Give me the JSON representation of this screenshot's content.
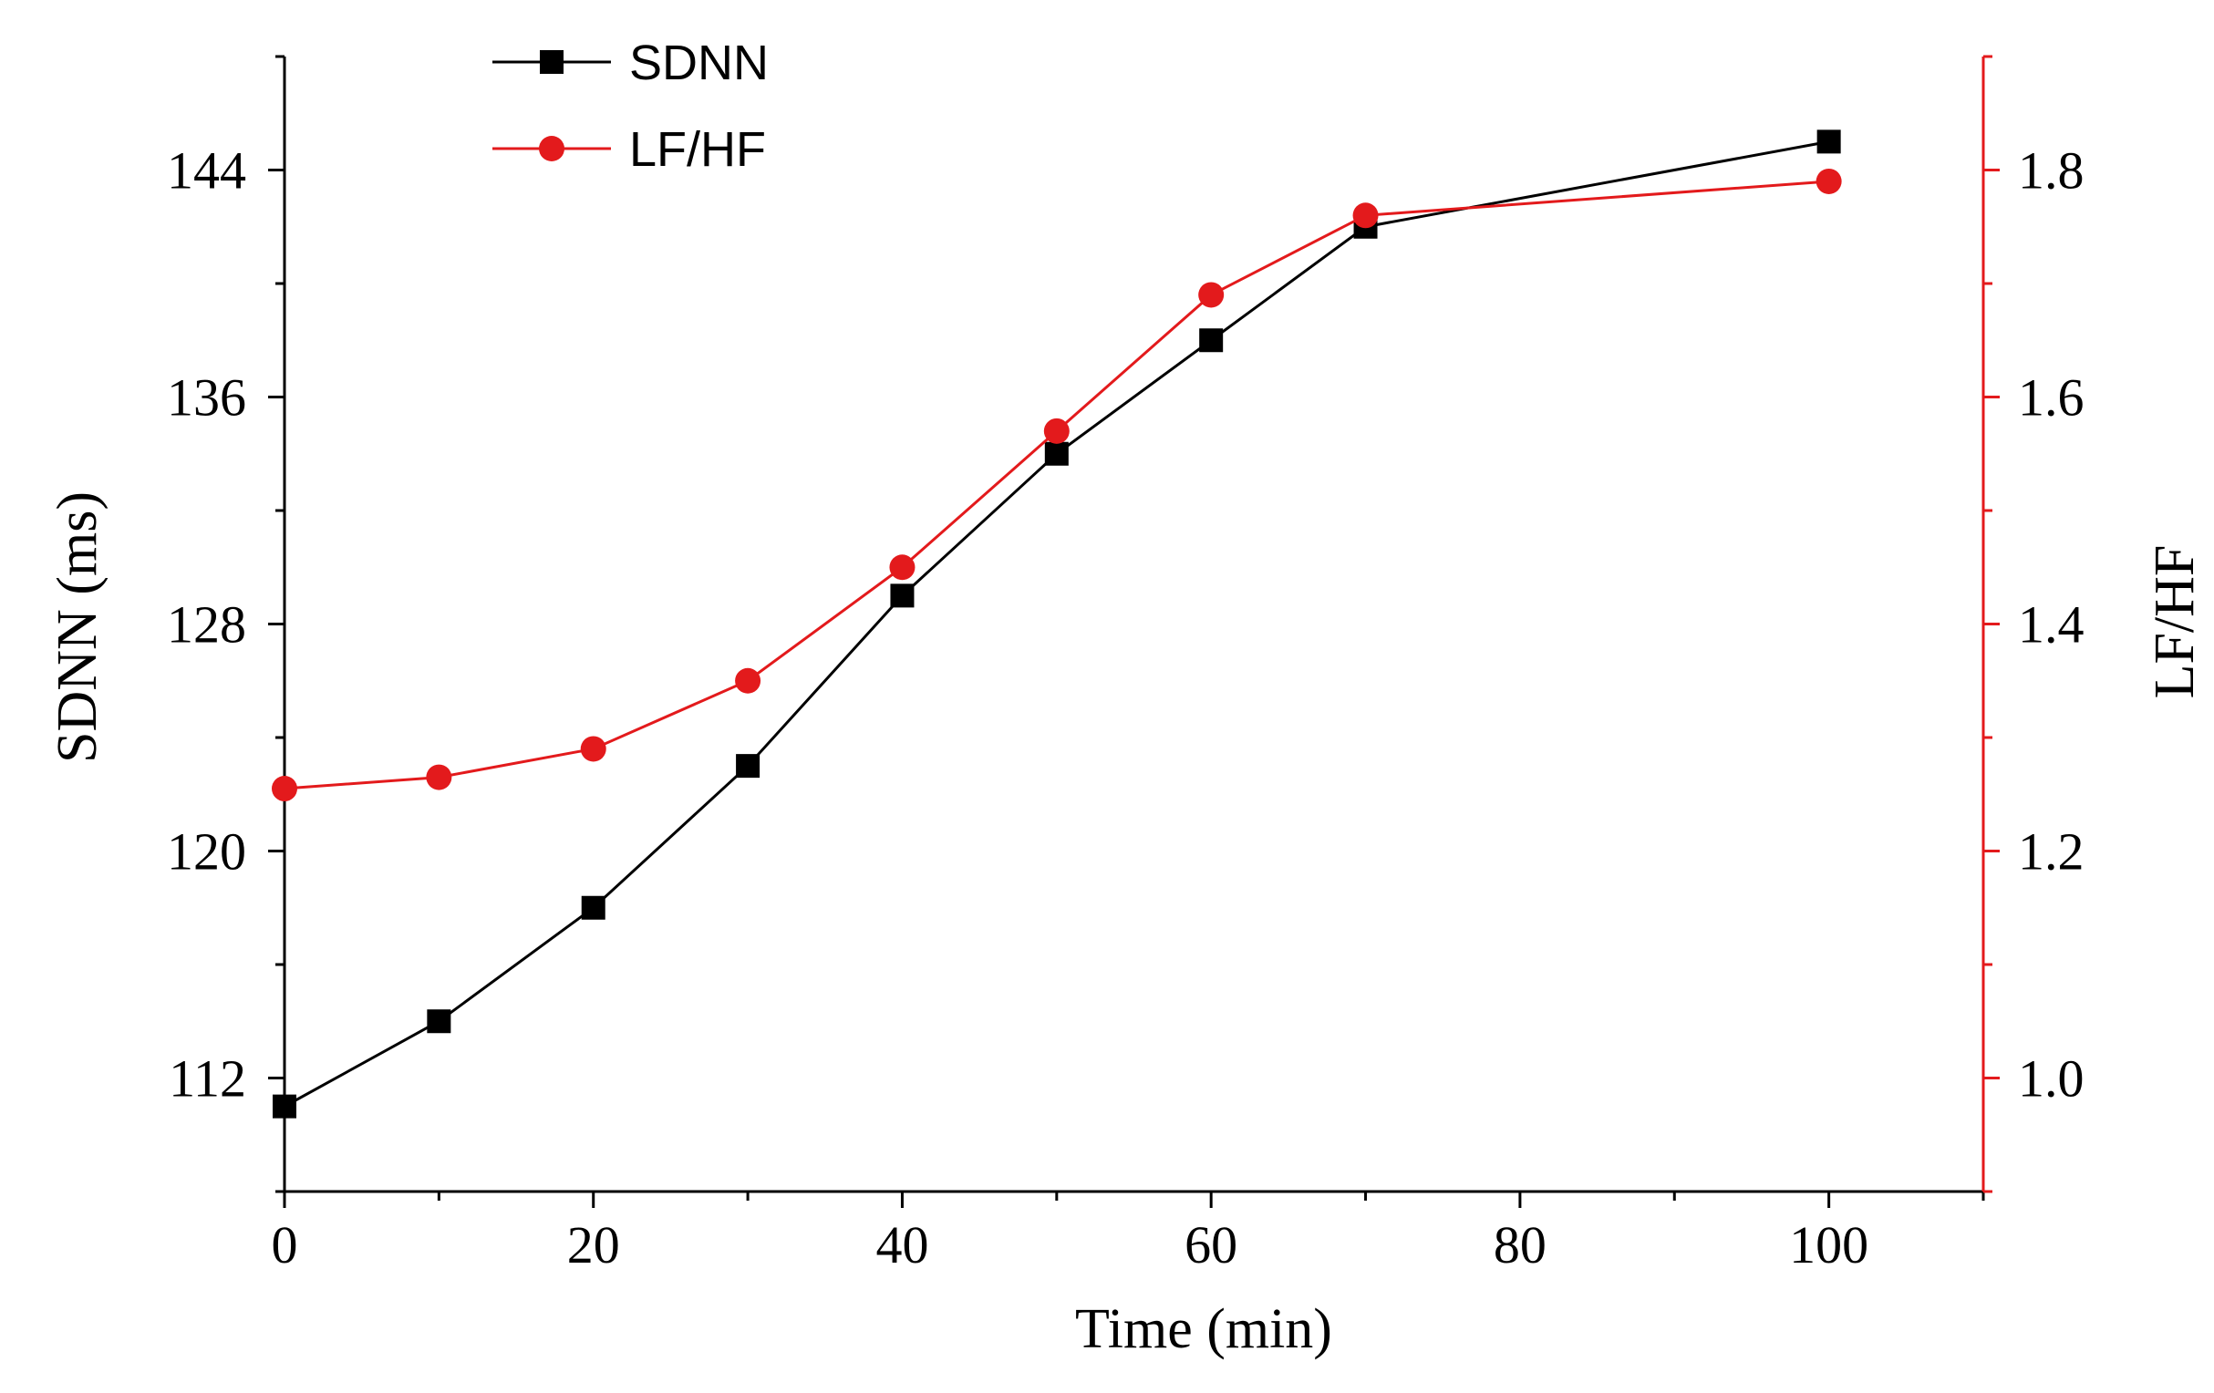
{
  "chart_data": {
    "type": "line",
    "x": [
      0,
      10,
      20,
      30,
      40,
      50,
      60,
      70,
      100
    ],
    "xlabel": "Time (min)",
    "xlim": [
      0,
      110
    ],
    "xticks": [
      0,
      20,
      40,
      60,
      80,
      100
    ],
    "xtick_labels": [
      "0",
      "20",
      "40",
      "60",
      "80",
      "100"
    ],
    "left_axis": {
      "label": "SDNN (ms)",
      "ylim": [
        108,
        148
      ],
      "ticks": [
        112,
        120,
        128,
        136,
        144
      ],
      "tick_labels": [
        "112",
        "120",
        "128",
        "136",
        "144"
      ],
      "color": "#000000"
    },
    "right_axis": {
      "label": "LF/HF",
      "ylim": [
        0.9,
        1.9
      ],
      "ticks": [
        1.0,
        1.2,
        1.4,
        1.6,
        1.8
      ],
      "tick_labels": [
        "1.0",
        "1.2",
        "1.4",
        "1.6",
        "1.8"
      ],
      "color": "#e31a1c"
    },
    "series": [
      {
        "name": "SDNN",
        "axis": "left",
        "marker": "square",
        "color": "#000000",
        "values": [
          111,
          114,
          118,
          123,
          129,
          134,
          138,
          142,
          145
        ]
      },
      {
        "name": "LF/HF",
        "axis": "right",
        "marker": "circle",
        "color": "#e31a1c",
        "values": [
          1.255,
          1.265,
          1.29,
          1.35,
          1.45,
          1.57,
          1.69,
          1.76,
          1.79
        ]
      }
    ],
    "legend": {
      "position": "top-left",
      "entries": [
        "SDNN",
        "LF/HF"
      ]
    },
    "grid": false
  }
}
